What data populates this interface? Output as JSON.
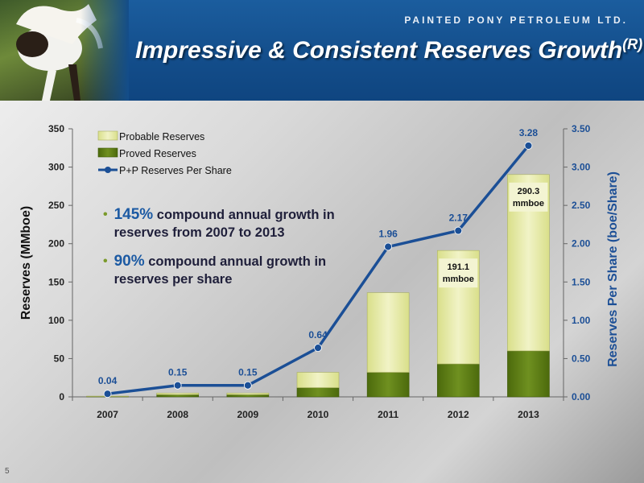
{
  "header": {
    "company": "PAINTED PONY PETROLEUM LTD.",
    "title": "Impressive & Consistent Reserves Growth",
    "title_sup": "(R)"
  },
  "bullets": [
    {
      "highlight": "145%",
      "text": " compound annual growth in reserves from 2007 to 2013"
    },
    {
      "highlight": "90%",
      "text": " compound annual growth in reserves per share"
    }
  ],
  "page_number": "5",
  "colors": {
    "proved": "#5f7f14",
    "probable": "#e8ecb0",
    "line": "#1b4f96",
    "header": "#134d8a"
  },
  "chart_data": {
    "type": "bar",
    "categories": [
      "2007",
      "2008",
      "2009",
      "2010",
      "2011",
      "2012",
      "2013"
    ],
    "series": [
      {
        "name": "Proved Reserves",
        "values": [
          0.5,
          3,
          3,
          12,
          32,
          43,
          60
        ],
        "stack": "reserves",
        "axis": "left"
      },
      {
        "name": "Probable Reserves",
        "values": [
          0.5,
          2,
          2,
          20,
          104,
          148.1,
          230.3
        ],
        "stack": "reserves",
        "axis": "left"
      },
      {
        "name": "P+P Reserves Per Share",
        "type": "line",
        "values": [
          0.04,
          0.15,
          0.15,
          0.64,
          1.96,
          2.17,
          3.28
        ],
        "axis": "right"
      }
    ],
    "line_labels": [
      "0.04",
      "0.15",
      "0.15",
      "0.64",
      "1.96",
      "2.17",
      "3.28"
    ],
    "bar_annotations": [
      {
        "category": "2012",
        "lines": [
          "191.1",
          "mmboe"
        ]
      },
      {
        "category": "2013",
        "lines": [
          "290.3",
          "mmboe"
        ]
      }
    ],
    "ylabel": "Reserves (MMboe)",
    "y2label": "Reserves Per Share (boe/Share)",
    "ylim": [
      0,
      350
    ],
    "y2lim": [
      0,
      3.5
    ],
    "yticks": [
      "0",
      "50",
      "100",
      "150",
      "200",
      "250",
      "300",
      "350"
    ],
    "y2ticks": [
      "0.00",
      "0.50",
      "1.00",
      "1.50",
      "2.00",
      "2.50",
      "3.00",
      "3.50"
    ],
    "legend_position": "top-left",
    "legend": [
      "Probable Reserves",
      "Proved Reserves",
      "P+P Reserves Per Share"
    ]
  }
}
